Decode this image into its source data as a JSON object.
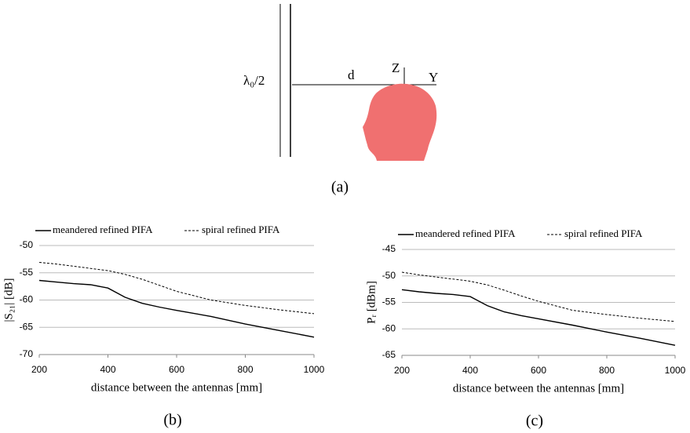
{
  "figure": {
    "panel_a": {
      "lambda_label": "λ₀/2",
      "d_label": "d",
      "z_label": "Z",
      "y_label": "Y",
      "caption": "(a)"
    }
  },
  "chart_data": [
    {
      "type": "line",
      "caption": "(b)",
      "xlabel": "distance between the antennas [mm]",
      "ylabel": "|S₂₁|  [dB]",
      "x": [
        200,
        250,
        300,
        350,
        400,
        450,
        500,
        550,
        600,
        700,
        800,
        900,
        1000
      ],
      "series": [
        {
          "name": "meandered refined PIFA",
          "color": "#000000",
          "style": "solid",
          "values": [
            -56.4,
            -56.7,
            -57.0,
            -57.2,
            -57.8,
            -59.5,
            -60.6,
            -61.3,
            -61.9,
            -63.0,
            -64.4,
            -65.6,
            -66.8
          ]
        },
        {
          "name": "spiral refined PIFA",
          "color": "#000000",
          "style": "dashed",
          "values": [
            -53.1,
            -53.4,
            -53.8,
            -54.2,
            -54.6,
            -55.3,
            -56.2,
            -57.3,
            -58.4,
            -60.0,
            -61.0,
            -61.8,
            -62.5
          ]
        }
      ],
      "xlim": [
        200,
        1000
      ],
      "ylim": [
        -70,
        -50
      ],
      "xticks": [
        200,
        400,
        600,
        800,
        1000
      ],
      "yticks": [
        -70,
        -65,
        -60,
        -55,
        -50
      ],
      "grid": true,
      "legend": "top"
    },
    {
      "type": "line",
      "caption": "(c)",
      "xlabel": "distance between the antennas [mm]",
      "ylabel": "Pᵣ  [dBm]",
      "x": [
        200,
        250,
        300,
        350,
        400,
        450,
        500,
        550,
        600,
        700,
        800,
        900,
        1000
      ],
      "series": [
        {
          "name": "meandered refined PIFA",
          "color": "#000000",
          "style": "solid",
          "values": [
            -52.6,
            -53.0,
            -53.3,
            -53.5,
            -53.9,
            -55.6,
            -56.8,
            -57.5,
            -58.1,
            -59.3,
            -60.6,
            -61.8,
            -63.1
          ]
        },
        {
          "name": "spiral refined PIFA",
          "color": "#000000",
          "style": "dashed",
          "values": [
            -49.3,
            -49.8,
            -50.2,
            -50.6,
            -51.0,
            -51.7,
            -52.7,
            -53.8,
            -54.8,
            -56.5,
            -57.3,
            -58.0,
            -58.6
          ]
        }
      ],
      "xlim": [
        200,
        1000
      ],
      "ylim": [
        -65,
        -45
      ],
      "xticks": [
        200,
        400,
        600,
        800,
        1000
      ],
      "yticks": [
        -65,
        -60,
        -55,
        -50,
        -45
      ],
      "grid": true,
      "legend": "top"
    }
  ]
}
